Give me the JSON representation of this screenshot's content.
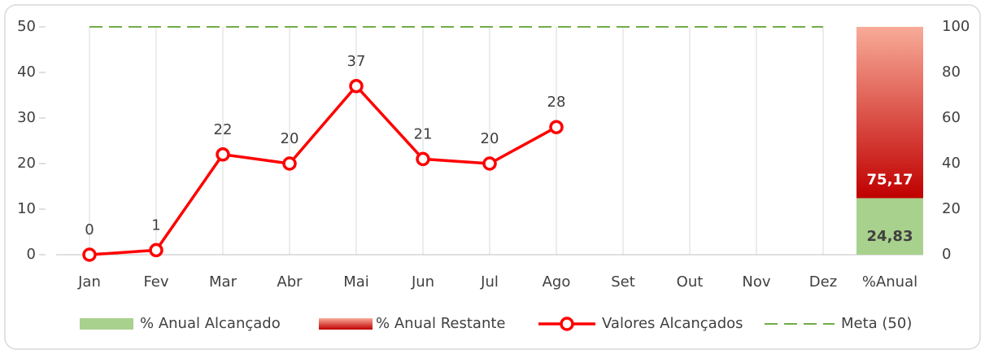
{
  "chart_data": {
    "type": "combo",
    "categories": [
      "Jan",
      "Fev",
      "Mar",
      "Abr",
      "Mai",
      "Jun",
      "Jul",
      "Ago",
      "Set",
      "Out",
      "Nov",
      "Dez",
      "%Anual"
    ],
    "ylim": [
      0,
      50
    ],
    "yticks": [
      0,
      10,
      20,
      30,
      40,
      50
    ],
    "y2lim": [
      0,
      100
    ],
    "y2ticks": [
      0,
      20,
      40,
      60,
      80,
      100
    ],
    "grid": true,
    "legend": "bottom",
    "series": [
      {
        "name": "% Anual Alcançado",
        "type": "bar",
        "axis": "y2",
        "color": "#a9d18e",
        "values": [
          null,
          null,
          null,
          null,
          null,
          null,
          null,
          null,
          null,
          null,
          null,
          null,
          24.83
        ],
        "value_labels": [
          null,
          null,
          null,
          null,
          null,
          null,
          null,
          null,
          null,
          null,
          null,
          null,
          "24,83"
        ]
      },
      {
        "name": "% Anual Restante",
        "type": "bar",
        "axis": "y2",
        "color": "#c00000",
        "gradient_top": "#f8ab98",
        "values": [
          null,
          null,
          null,
          null,
          null,
          null,
          null,
          null,
          null,
          null,
          null,
          null,
          75.17
        ],
        "value_labels": [
          null,
          null,
          null,
          null,
          null,
          null,
          null,
          null,
          null,
          null,
          null,
          null,
          "75,17"
        ]
      },
      {
        "name": "Valores Alcançados",
        "type": "line",
        "color": "#ff0000",
        "markers": true,
        "data_labels": true,
        "values": [
          0,
          1,
          22,
          20,
          37,
          21,
          20,
          28,
          null,
          null,
          null,
          null,
          null
        ]
      },
      {
        "name": "Meta (50)",
        "type": "line",
        "color": "#70ad47",
        "dashed": true,
        "values": [
          50,
          50,
          50,
          50,
          50,
          50,
          50,
          50,
          50,
          50,
          50,
          50,
          null
        ]
      }
    ]
  }
}
